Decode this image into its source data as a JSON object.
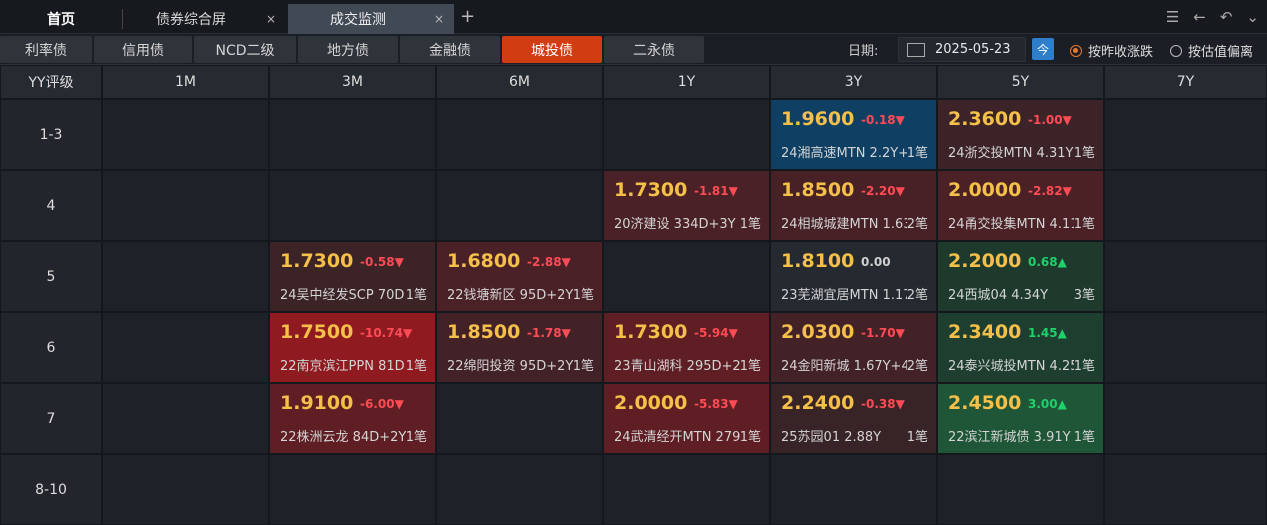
{
  "tabs": {
    "home": "首页",
    "tab1": "债券综合屏",
    "tab2": "成交监测",
    "close": "×",
    "add": "+"
  },
  "categories": [
    "利率债",
    "信用债",
    "NCD二级",
    "地方债",
    "金融债",
    "城投债",
    "二永债"
  ],
  "active_category": "城投债",
  "date": {
    "label": "日期:",
    "value": "2025-05-23",
    "today": "今"
  },
  "radios": [
    {
      "label": "按昨收涨跌",
      "checked": true
    },
    {
      "label": "按估值偏离",
      "checked": false
    }
  ],
  "colors": {
    "up": "#1fd16a",
    "down": "#ff4b55",
    "neutral": "#d0d0d0",
    "price": "#f4c04a",
    "active_tab": "#d23c12"
  },
  "grid": {
    "corner": "YY评级",
    "terms": [
      "1M",
      "3M",
      "6M",
      "1Y",
      "3Y",
      "5Y",
      "7Y"
    ],
    "rows": [
      {
        "rating": "1-3",
        "cells": [
          null,
          null,
          null,
          null,
          {
            "price": "1.9600",
            "change": "-0.18▼",
            "dir": "down",
            "desc": "24湘高速MTN 2.2Y+N",
            "count": "1笔",
            "bg": "#0f3f63"
          },
          {
            "price": "2.3600",
            "change": "-1.00▼",
            "dir": "down",
            "desc": "24浙交投MTN 4.31Y",
            "count": "1笔",
            "bg": "#3c2328"
          },
          null
        ]
      },
      {
        "rating": "4",
        "cells": [
          null,
          null,
          null,
          {
            "price": "1.7300",
            "change": "-1.81▼",
            "dir": "down",
            "desc": "20济建设 334D+3Y",
            "count": "1笔",
            "bg": "#4a2126"
          },
          {
            "price": "1.8500",
            "change": "-2.20▼",
            "dir": "down",
            "desc": "24相城城建MTN 1.63Y",
            "count": "2笔",
            "bg": "#472126"
          },
          {
            "price": "2.0000",
            "change": "-2.82▼",
            "dir": "down",
            "desc": "24甬交投集MTN 4.11Y",
            "count": "1笔",
            "bg": "#4b2126"
          },
          null
        ]
      },
      {
        "rating": "5",
        "cells": [
          null,
          {
            "price": "1.7300",
            "change": "-0.58▼",
            "dir": "down",
            "desc": "24吴中经发SCP 70D",
            "count": "1笔",
            "bg": "#3b2326"
          },
          {
            "price": "1.6800",
            "change": "-2.88▼",
            "dir": "down",
            "desc": "22钱塘新区 95D+2Y",
            "count": "1笔",
            "bg": "#4a2126"
          },
          null,
          {
            "price": "1.8100",
            "change": "0.00",
            "dir": "flat",
            "desc": "23芜湖宜居MTN 1.17Y",
            "count": "2笔",
            "bg": "#252a31"
          },
          {
            "price": "2.2000",
            "change": "0.68▲",
            "dir": "up",
            "desc": "24西城04 4.34Y",
            "count": "3笔",
            "bg": "#1d3a2d"
          },
          null
        ]
      },
      {
        "rating": "6",
        "cells": [
          null,
          {
            "price": "1.7500",
            "change": "-10.74▼",
            "dir": "down",
            "desc": "22南京滨江PPN 81D+N",
            "count": "1笔",
            "bg": "#8f1a20"
          },
          {
            "price": "1.8500",
            "change": "-1.78▼",
            "dir": "down",
            "desc": "22绵阳投资 95D+2Y",
            "count": "1笔",
            "bg": "#432227"
          },
          {
            "price": "1.7300",
            "change": "-5.94▼",
            "dir": "down",
            "desc": "23青山湖科 295D+2Y",
            "count": "1笔",
            "bg": "#5e1e24"
          },
          {
            "price": "2.0300",
            "change": "-1.70▼",
            "dir": "down",
            "desc": "24金阳新城 1.67Y+4Y",
            "count": "2笔",
            "bg": "#432227"
          },
          {
            "price": "2.3400",
            "change": "1.45▲",
            "dir": "up",
            "desc": "24泰兴城投MTN 4.25Y",
            "count": "1笔",
            "bg": "#1e3f2f"
          },
          null
        ]
      },
      {
        "rating": "7",
        "cells": [
          null,
          {
            "price": "1.9100",
            "change": "-6.00▼",
            "dir": "down",
            "desc": "22株洲云龙 84D+2Y",
            "count": "1笔",
            "bg": "#5f1e24"
          },
          null,
          {
            "price": "2.0000",
            "change": "-5.83▼",
            "dir": "down",
            "desc": "24武清经开MTN 279D",
            "count": "1笔",
            "bg": "#5e1e24"
          },
          {
            "price": "2.2400",
            "change": "-0.38▼",
            "dir": "down",
            "desc": "25苏园01 2.88Y",
            "count": "1笔",
            "bg": "#382427"
          },
          {
            "price": "2.4500",
            "change": "3.00▲",
            "dir": "up",
            "desc": "22滨江新城债 3.91Y",
            "count": "1笔",
            "bg": "#1f5637"
          },
          null
        ]
      },
      {
        "rating": "8-10",
        "cells": [
          null,
          null,
          null,
          null,
          null,
          null,
          null
        ]
      }
    ]
  }
}
